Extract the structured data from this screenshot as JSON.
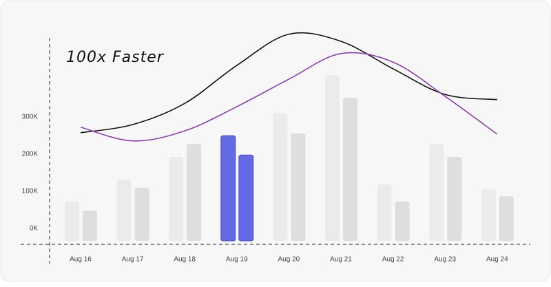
{
  "chart_data": {
    "type": "bar",
    "title": "100x Faster",
    "categories": [
      "Aug 16",
      "Aug 17",
      "Aug 18",
      "Aug 19",
      "Aug 20",
      "Aug 21",
      "Aug 22",
      "Aug 23",
      "Aug 24"
    ],
    "series": [
      {
        "type": "bar",
        "colors": [
          "#ebebeb",
          "#ebebeb",
          "#ebebeb",
          "#636ae3",
          "#ebebeb",
          "#ebebeb",
          "#ebebeb",
          "#ebebeb",
          "#ebebeb"
        ],
        "values": [
          105000,
          165000,
          226000,
          283000,
          344000,
          446000,
          152000,
          261000,
          139000
        ]
      },
      {
        "type": "bar",
        "colors": [
          "#dedede",
          "#dedede",
          "#dedede",
          "#636ae3",
          "#dedede",
          "#dedede",
          "#dedede",
          "#dedede",
          "#dedede"
        ],
        "values": [
          81000,
          143000,
          261000,
          231000,
          289000,
          385000,
          106000,
          226000,
          120000
        ]
      },
      {
        "type": "line",
        "color": "#111111",
        "values": [
          291000,
          313000,
          370000,
          472000,
          556000,
          537000,
          463000,
          394000,
          380000
        ]
      },
      {
        "type": "line",
        "color": "#8a3fb0",
        "values": [
          306000,
          269000,
          296000,
          361000,
          435000,
          504000,
          481000,
          389000,
          287000
        ]
      }
    ],
    "ylim": [
      0,
      574000
    ],
    "yticks": [
      {
        "value": 0,
        "label": "0K"
      },
      {
        "value": 100000,
        "label": "100K"
      },
      {
        "value": 200000,
        "label": "200K"
      },
      {
        "value": 300000,
        "label": "300K"
      }
    ],
    "grid": false
  }
}
